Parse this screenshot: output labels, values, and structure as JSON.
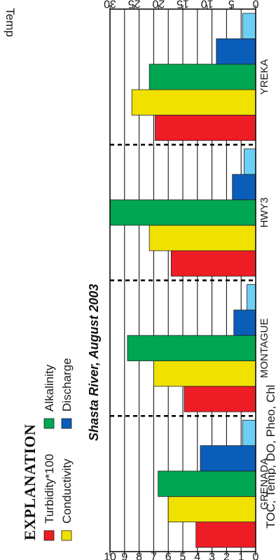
{
  "chart_data": {
    "type": "bar",
    "title": "Shasta River, August 2003",
    "categories": [
      "GRENADA",
      "MONTAGUE",
      "HWY3",
      "YREKA"
    ],
    "series": [
      {
        "name": "Turbidity*100",
        "color": "#ee1c25",
        "axis": "left",
        "values": [
          4.1,
          4.9,
          5.8,
          6.9
        ]
      },
      {
        "name": "Conductivity",
        "color": "#f0e100",
        "axis": "left",
        "values": [
          6.0,
          7.0,
          7.3,
          8.5
        ]
      },
      {
        "name": "Alkalinity",
        "color": "#00a651",
        "axis": "left",
        "values": [
          6.7,
          8.8,
          10.0,
          7.3
        ]
      },
      {
        "name": "Discharge",
        "color": "#0a5db8",
        "axis": "left",
        "values": [
          3.8,
          1.5,
          1.6,
          2.7
        ]
      },
      {
        "name": "",
        "color": "#6ccff6",
        "axis": "left",
        "values": [
          0.9,
          0.6,
          0.8,
          0.9
        ]
      }
    ],
    "y_left": {
      "label": "TOC, Temp, DO, Pheo, Chl",
      "range": [
        0,
        10
      ],
      "ticks": [
        "0",
        "1",
        "2",
        "3",
        "4",
        "5",
        "6",
        "7",
        "8",
        "9",
        "10"
      ]
    },
    "y_right": {
      "label": "Temp",
      "range": [
        0,
        30
      ],
      "ticks": [
        "0",
        "5",
        "10",
        "15",
        "20",
        "25",
        "30"
      ]
    },
    "grid": true,
    "legend": {
      "title": "EXPLANATION",
      "placement": "top"
    }
  }
}
